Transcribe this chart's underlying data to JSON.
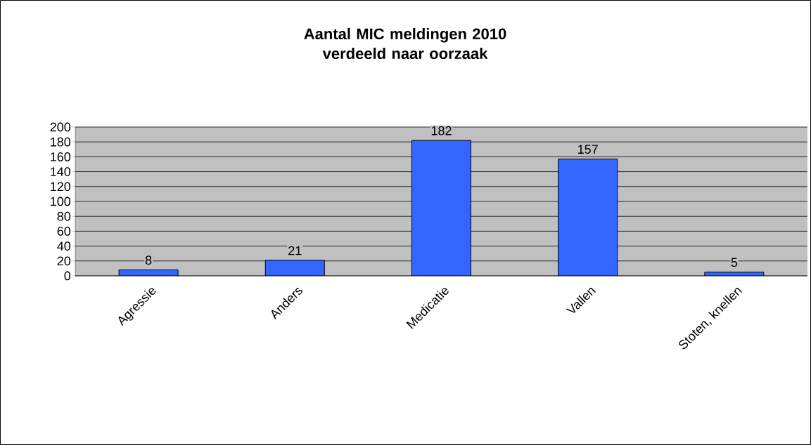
{
  "chart_data": {
    "type": "bar",
    "title": "Aantal MIC meldingen 2010\nverdeeld naar oorzaak",
    "categories": [
      "Agressie",
      "Anders",
      "Medicatie",
      "Vallen",
      "Stoten, knellen"
    ],
    "values": [
      8,
      21,
      182,
      157,
      5
    ],
    "color": "#3366ff",
    "ylim": [
      0,
      200
    ],
    "yticks": [
      0,
      20,
      40,
      60,
      80,
      100,
      120,
      140,
      160,
      180,
      200
    ],
    "grid": "y",
    "data_labels": true
  }
}
